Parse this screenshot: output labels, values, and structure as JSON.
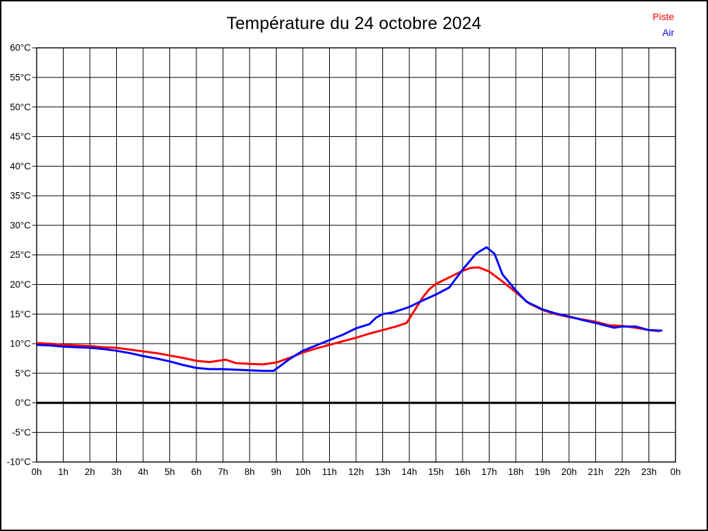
{
  "title": "Température du 24 octobre 2024",
  "legend": [
    {
      "label": "Piste",
      "color": "#ff0000"
    },
    {
      "label": "Air",
      "color": "#0000ff"
    }
  ],
  "colors": {
    "piste_line": "#ff0000",
    "air_line": "#0000ff",
    "grid": "#000000",
    "zero_line": "#000000",
    "background": "#ffffff",
    "text": "#000000"
  },
  "chart_data": {
    "type": "line",
    "title": "Température du 24 octobre 2024",
    "xlabel": "",
    "ylabel": "",
    "xlim": [
      0,
      24
    ],
    "ylim": [
      -10,
      60
    ],
    "grid": true,
    "zero_line_bold": true,
    "legend_position": "top-right",
    "x_ticks": [
      "0h",
      "1h",
      "2h",
      "3h",
      "4h",
      "5h",
      "6h",
      "7h",
      "8h",
      "9h",
      "10h",
      "11h",
      "12h",
      "13h",
      "14h",
      "15h",
      "16h",
      "17h",
      "18h",
      "19h",
      "20h",
      "21h",
      "22h",
      "23h",
      "0h"
    ],
    "y_ticks": [
      {
        "v": 60,
        "label": "60°C"
      },
      {
        "v": 55,
        "label": "55°C"
      },
      {
        "v": 50,
        "label": "50°C"
      },
      {
        "v": 45,
        "label": "45°C"
      },
      {
        "v": 40,
        "label": "40°C"
      },
      {
        "v": 35,
        "label": "35°C"
      },
      {
        "v": 30,
        "label": "30°C"
      },
      {
        "v": 25,
        "label": "25°C"
      },
      {
        "v": 20,
        "label": "20°C"
      },
      {
        "v": 15,
        "label": "15°C"
      },
      {
        "v": 10,
        "label": "10°C"
      },
      {
        "v": 5,
        "label": "5°C"
      },
      {
        "v": 0,
        "label": "0°C"
      },
      {
        "v": -5,
        "label": "-5°C"
      },
      {
        "v": -10,
        "label": "-10°C"
      }
    ],
    "series": [
      {
        "name": "Piste",
        "color": "#ff0000",
        "x": [
          0,
          0.5,
          1,
          1.5,
          2,
          2.5,
          3,
          3.5,
          4,
          4.5,
          5,
          5.5,
          6,
          6.5,
          7.1,
          7.5,
          8,
          8.5,
          9,
          9.5,
          10,
          10.5,
          11,
          11.5,
          12,
          12.5,
          13,
          13.5,
          13.9,
          14.25,
          14.5,
          14.75,
          15,
          15.5,
          16,
          16.3,
          16.6,
          17,
          17.5,
          18,
          18.5,
          19,
          19.5,
          20,
          20.5,
          21,
          21.5,
          22,
          22.5,
          23,
          23.4
        ],
        "values": [
          10.1,
          10.0,
          9.8,
          9.7,
          9.6,
          9.4,
          9.3,
          9.0,
          8.7,
          8.4,
          8.0,
          7.6,
          7.1,
          6.9,
          7.3,
          6.7,
          6.6,
          6.5,
          6.8,
          7.6,
          8.5,
          9.2,
          9.8,
          10.4,
          11.0,
          11.7,
          12.3,
          12.9,
          13.5,
          16.0,
          17.8,
          19.2,
          20.1,
          21.2,
          22.3,
          22.8,
          22.9,
          22.2,
          20.5,
          18.7,
          16.8,
          15.7,
          15.0,
          14.5,
          14.1,
          13.7,
          13.1,
          13.0,
          12.7,
          12.3,
          12.1
        ]
      },
      {
        "name": "Air",
        "color": "#0000ff",
        "x": [
          0,
          0.5,
          1,
          1.5,
          2,
          2.5,
          3,
          3.5,
          4,
          4.5,
          5,
          5.5,
          6,
          6.5,
          7,
          7.5,
          8,
          8.5,
          8.9,
          9.5,
          10,
          10.5,
          11,
          11.5,
          12,
          12.5,
          12.75,
          13,
          13.4,
          14,
          14.5,
          15,
          15.5,
          15.75,
          16,
          16.5,
          16.9,
          17.2,
          17.5,
          18,
          18.4,
          19,
          19.5,
          20,
          20.5,
          21,
          21.7,
          22,
          22.5,
          23,
          23.5
        ],
        "values": [
          9.8,
          9.7,
          9.5,
          9.4,
          9.3,
          9.1,
          8.8,
          8.4,
          7.9,
          7.5,
          7.0,
          6.4,
          5.9,
          5.7,
          5.7,
          5.6,
          5.5,
          5.4,
          5.4,
          7.4,
          8.8,
          9.7,
          10.6,
          11.5,
          12.6,
          13.3,
          14.4,
          15.0,
          15.3,
          16.2,
          17.3,
          18.3,
          19.5,
          21.0,
          22.5,
          25.2,
          26.3,
          25.2,
          21.7,
          19.0,
          17.1,
          15.8,
          15.1,
          14.6,
          14.0,
          13.5,
          12.7,
          12.9,
          12.9,
          12.3,
          12.2
        ]
      }
    ]
  }
}
